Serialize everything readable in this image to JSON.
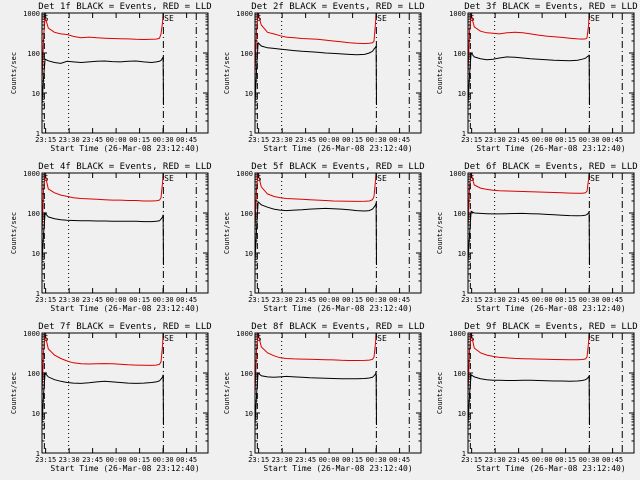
{
  "chart_data": {
    "type": "line",
    "common": {
      "ylabel": "Counts/sec",
      "xlabel": "Start Time (26-Mar-08 23:12:40)",
      "y_scale": "log",
      "ylim": [
        1,
        1000
      ],
      "y_ticks": [
        "1",
        "10",
        "100",
        "1000"
      ],
      "x_range_minutes": [
        0,
        106
      ],
      "x_tick_labels": [
        "23:15",
        "23:30",
        "23:45",
        "00:00",
        "00:15",
        "00:30",
        "00:45"
      ],
      "x_tick_minutes": [
        2.33,
        17.33,
        32.33,
        47.33,
        62.33,
        77.33,
        92.33
      ],
      "vlines": [
        {
          "minutes": 1.5,
          "style": "dash"
        },
        {
          "minutes": 17.0,
          "style": "dot"
        },
        {
          "minutes": 77.5,
          "style": "dashdot"
        },
        {
          "minutes": 98.5,
          "style": "dashdot"
        }
      ],
      "markers": [
        {
          "text": "S",
          "minutes": 1.0
        },
        {
          "text": "SE",
          "minutes": 78.0
        }
      ],
      "series_colors": {
        "events": "#000000",
        "lld": "#e00000"
      },
      "x_minutes": [
        0,
        1,
        2,
        4,
        8,
        12,
        16,
        20,
        25,
        30,
        35,
        40,
        45,
        50,
        55,
        60,
        65,
        70,
        73,
        75,
        76,
        77,
        77.3,
        77.6
      ]
    },
    "panels": [
      {
        "title": "Det 1f BLACK = Events, RED = LLD",
        "series": [
          {
            "values": [
              5,
              25,
              70,
              64,
              58,
              55,
              62,
              60,
              58,
              60,
              62,
              63,
              61,
              60,
              62,
              63,
              60,
              58,
              60,
              62,
              65,
              75,
              80,
              5
            ]
          },
          {
            "values": [
              20,
              250,
              800,
              420,
              330,
              300,
              290,
              260,
              240,
              250,
              240,
              235,
              230,
              228,
              225,
              220,
              218,
              220,
              222,
              235,
              300,
              600,
              1000,
              1000
            ]
          }
        ]
      },
      {
        "title": "Det 2f BLACK = Events, RED = LLD",
        "series": [
          {
            "values": [
              5,
              40,
              180,
              150,
              135,
              130,
              125,
              120,
              115,
              110,
              108,
              105,
              100,
              98,
              95,
              92,
              90,
              92,
              100,
              110,
              125,
              140,
              150,
              5
            ]
          },
          {
            "values": [
              30,
              400,
              950,
              500,
              330,
              300,
              270,
              250,
              240,
              230,
              225,
              220,
              210,
              200,
              190,
              180,
              175,
              172,
              175,
              180,
              200,
              600,
              1000,
              1000
            ]
          }
        ]
      },
      {
        "title": "Det 3f BLACK = Events, RED = LLD",
        "series": [
          {
            "values": [
              5,
              30,
              100,
              80,
              72,
              68,
              70,
              75,
              80,
              78,
              75,
              72,
              70,
              68,
              66,
              65,
              64,
              66,
              70,
              74,
              80,
              85,
              90,
              5
            ]
          },
          {
            "values": [
              30,
              350,
              900,
              450,
              350,
              320,
              310,
              300,
              320,
              330,
              320,
              300,
              280,
              265,
              255,
              245,
              235,
              225,
              222,
              225,
              240,
              500,
              1000,
              1000
            ]
          }
        ]
      },
      {
        "title": "Det 4f BLACK = Events, RED = LLD",
        "series": [
          {
            "values": [
              6,
              30,
              100,
              80,
              72,
              68,
              66,
              65,
              64,
              64,
              63,
              63,
              62,
              62,
              62,
              62,
              61,
              61,
              62,
              64,
              70,
              80,
              90,
              5
            ]
          },
          {
            "values": [
              30,
              400,
              900,
              400,
              320,
              280,
              260,
              240,
              230,
              225,
              220,
              215,
              210,
              210,
              205,
              205,
              200,
              200,
              202,
              210,
              240,
              600,
              1000,
              1000
            ]
          }
        ]
      },
      {
        "title": "Det 5f BLACK = Events, RED = LLD",
        "series": [
          {
            "values": [
              6,
              40,
              190,
              160,
              140,
              125,
              118,
              115,
              118,
              120,
              125,
              128,
              130,
              128,
              125,
              120,
              115,
              112,
              115,
              125,
              140,
              160,
              180,
              5
            ]
          },
          {
            "values": [
              35,
              450,
              950,
              450,
              300,
              260,
              240,
              230,
              225,
              220,
              215,
              210,
              205,
              200,
              198,
              196,
              195,
              196,
              200,
              215,
              260,
              700,
              1000,
              1000
            ]
          }
        ]
      },
      {
        "title": "Det 6f BLACK = Events, RED = LLD",
        "series": [
          {
            "values": [
              6,
              30,
              110,
              100,
              98,
              96,
              95,
              95,
              96,
              97,
              98,
              96,
              95,
              92,
              90,
              88,
              86,
              85,
              86,
              88,
              92,
              100,
              110,
              5
            ]
          },
          {
            "values": [
              40,
              500,
              950,
              500,
              420,
              390,
              370,
              360,
              355,
              350,
              345,
              340,
              335,
              330,
              325,
              320,
              315,
              310,
              312,
              320,
              350,
              700,
              1000,
              1000
            ]
          }
        ]
      },
      {
        "title": "Det 7f BLACK = Events, RED = LLD",
        "series": [
          {
            "values": [
              5,
              30,
              100,
              80,
              68,
              62,
              58,
              56,
              55,
              57,
              60,
              62,
              60,
              58,
              56,
              55,
              56,
              58,
              60,
              64,
              70,
              80,
              90,
              5
            ]
          },
          {
            "values": [
              30,
              350,
              900,
              400,
              280,
              230,
              200,
              180,
              170,
              168,
              170,
              172,
              170,
              165,
              160,
              158,
              156,
              155,
              158,
              165,
              190,
              500,
              1000,
              1000
            ]
          }
        ]
      },
      {
        "title": "Det 8f BLACK = Events, RED = LLD",
        "series": [
          {
            "values": [
              5,
              30,
              100,
              85,
              80,
              78,
              80,
              82,
              80,
              78,
              76,
              75,
              74,
              73,
              72,
              72,
              72,
              73,
              75,
              78,
              85,
              95,
              110,
              5
            ]
          },
          {
            "values": [
              30,
              400,
              950,
              450,
              320,
              270,
              240,
              230,
              225,
              222,
              220,
              218,
              215,
              212,
              208,
              205,
              205,
              207,
              210,
              220,
              250,
              600,
              1000,
              1000
            ]
          }
        ]
      },
      {
        "title": "Det 9f BLACK = Events, RED = LLD",
        "series": [
          {
            "values": [
              5,
              30,
              90,
              80,
              72,
              68,
              66,
              66,
              65,
              65,
              66,
              66,
              65,
              64,
              63,
              63,
              62,
              63,
              65,
              68,
              72,
              80,
              85,
              5
            ]
          },
          {
            "values": [
              30,
              380,
              950,
              420,
              320,
              280,
              260,
              245,
              238,
              232,
              228,
              225,
              222,
              220,
              218,
              216,
              214,
              215,
              218,
              225,
              250,
              600,
              1000,
              1000
            ]
          }
        ]
      }
    ]
  }
}
